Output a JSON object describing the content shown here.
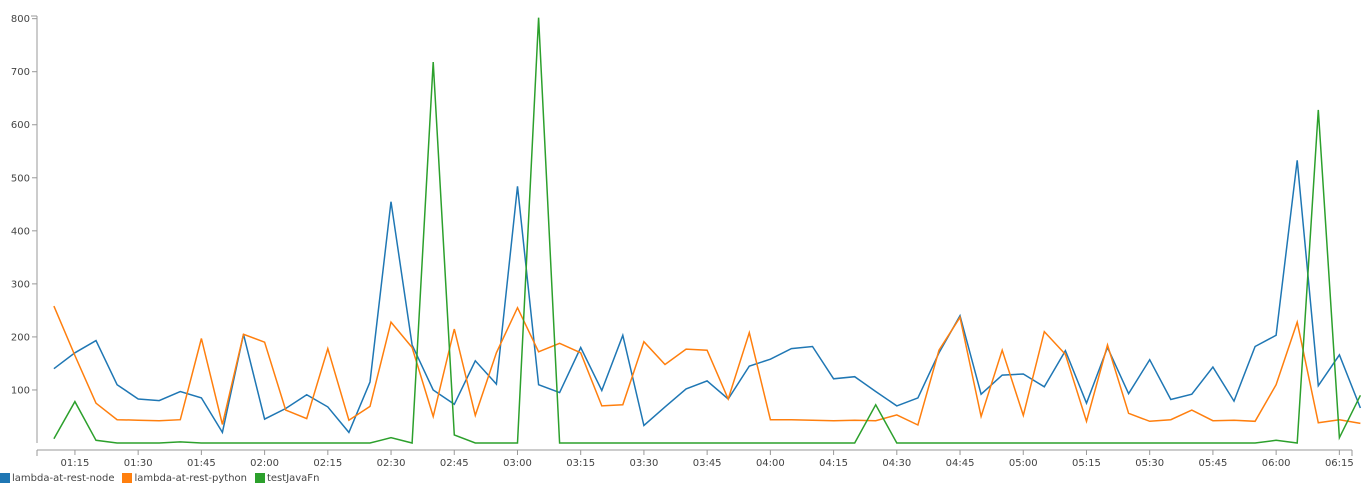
{
  "chart_data": {
    "type": "line",
    "title": "",
    "xlabel": "",
    "ylabel": "",
    "x_tick_labels": [
      "01:15",
      "01:30",
      "01:45",
      "02:00",
      "02:15",
      "02:30",
      "02:45",
      "03:00",
      "03:15",
      "03:30",
      "03:45",
      "04:00",
      "04:15",
      "04:30",
      "04:45",
      "05:00",
      "05:15",
      "05:30",
      "05:45",
      "06:00",
      "06:15"
    ],
    "x_tick_minutes": [
      75,
      90,
      105,
      120,
      135,
      150,
      165,
      180,
      195,
      210,
      225,
      240,
      255,
      270,
      285,
      300,
      315,
      330,
      345,
      360,
      375
    ],
    "x_range_minutes": [
      66,
      378
    ],
    "x": [
      "01:10",
      "01:15",
      "01:20",
      "01:25",
      "01:30",
      "01:35",
      "01:40",
      "01:45",
      "01:50",
      "01:55",
      "02:00",
      "02:05",
      "02:10",
      "02:15",
      "02:20",
      "02:25",
      "02:30",
      "02:35",
      "02:40",
      "02:45",
      "02:50",
      "02:55",
      "03:00",
      "03:05",
      "03:10",
      "03:15",
      "03:20",
      "03:25",
      "03:30",
      "03:35",
      "03:40",
      "03:45",
      "03:50",
      "03:55",
      "04:00",
      "04:05",
      "04:10",
      "04:15",
      "04:20",
      "04:25",
      "04:30",
      "04:35",
      "04:40",
      "04:45",
      "04:50",
      "04:55",
      "05:00",
      "05:05",
      "05:10",
      "05:15",
      "05:20",
      "05:25",
      "05:30",
      "05:35",
      "05:40",
      "05:45",
      "05:50",
      "05:55",
      "06:00",
      "06:05",
      "06:10",
      "06:15",
      "06:20"
    ],
    "y_ticks": [
      100,
      200,
      300,
      400,
      500,
      600,
      700,
      800
    ],
    "ylim": [
      0,
      805
    ],
    "grid": false,
    "legend_position": "bottom-left",
    "series": [
      {
        "name": "lambda-at-rest-node",
        "color": "#1f77b4",
        "values": [
          140,
          170,
          193,
          110,
          83,
          80,
          97,
          85,
          20,
          205,
          45,
          65,
          91,
          68,
          20,
          115,
          455,
          185,
          100,
          73,
          155,
          111,
          484,
          110,
          95,
          180,
          99,
          203,
          33,
          68,
          102,
          117,
          83,
          145,
          158,
          178,
          182,
          121,
          125,
          97,
          70,
          85,
          170,
          240,
          92,
          128,
          130,
          106,
          174,
          75,
          180,
          93,
          157,
          82,
          92,
          143,
          79,
          182,
          203,
          533,
          108,
          166,
          66
        ]
      },
      {
        "name": "lambda-at-rest-python",
        "color": "#ff7f0e",
        "values": [
          258,
          165,
          75,
          44,
          43,
          42,
          44,
          197,
          35,
          205,
          190,
          62,
          46,
          178,
          43,
          69,
          228,
          180,
          50,
          215,
          52,
          170,
          255,
          172,
          188,
          170,
          70,
          72,
          191,
          148,
          177,
          175,
          83,
          208,
          44,
          44,
          43,
          42,
          43,
          42,
          53,
          34,
          175,
          237,
          50,
          175,
          52,
          210,
          167,
          41,
          185,
          56,
          41,
          44,
          62,
          42,
          43,
          41,
          110,
          228,
          38,
          44,
          37
        ]
      },
      {
        "name": "testJavaFn",
        "color": "#2ca02c",
        "values": [
          8,
          78,
          5,
          0,
          0,
          0,
          2,
          0,
          0,
          0,
          0,
          0,
          0,
          0,
          0,
          0,
          10,
          0,
          718,
          15,
          0,
          0,
          0,
          802,
          0,
          0,
          0,
          0,
          0,
          0,
          0,
          0,
          0,
          0,
          0,
          0,
          0,
          0,
          0,
          72,
          0,
          0,
          0,
          0,
          0,
          0,
          0,
          0,
          0,
          0,
          0,
          0,
          0,
          0,
          0,
          0,
          0,
          0,
          5,
          0,
          628,
          10,
          90
        ]
      }
    ]
  }
}
